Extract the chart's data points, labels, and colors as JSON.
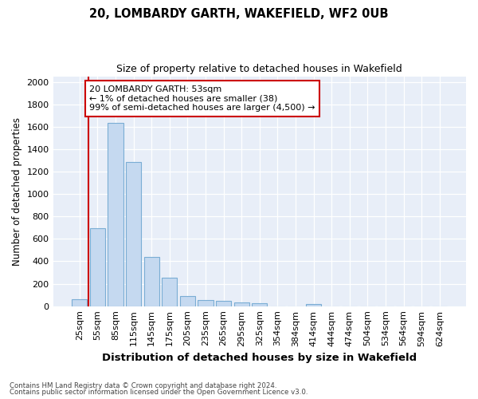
{
  "title1": "20, LOMBARDY GARTH, WAKEFIELD, WF2 0UB",
  "title2": "Size of property relative to detached houses in Wakefield",
  "xlabel": "Distribution of detached houses by size in Wakefield",
  "ylabel": "Number of detached properties",
  "categories": [
    "25sqm",
    "55sqm",
    "85sqm",
    "115sqm",
    "145sqm",
    "175sqm",
    "205sqm",
    "235sqm",
    "265sqm",
    "295sqm",
    "325sqm",
    "354sqm",
    "384sqm",
    "414sqm",
    "444sqm",
    "474sqm",
    "504sqm",
    "534sqm",
    "564sqm",
    "594sqm",
    "624sqm"
  ],
  "values": [
    65,
    695,
    1635,
    1285,
    440,
    255,
    90,
    55,
    50,
    30,
    25,
    0,
    0,
    20,
    0,
    0,
    0,
    0,
    0,
    0,
    0
  ],
  "bar_color": "#c5d9f0",
  "bar_edgecolor": "#7aadd4",
  "vline_color": "#cc0000",
  "annotation_text": "20 LOMBARDY GARTH: 53sqm\n← 1% of detached houses are smaller (38)\n99% of semi-detached houses are larger (4,500) →",
  "annotation_box_edgecolor": "#cc0000",
  "ylim": [
    0,
    2050
  ],
  "yticks": [
    0,
    200,
    400,
    600,
    800,
    1000,
    1200,
    1400,
    1600,
    1800,
    2000
  ],
  "footer1": "Contains HM Land Registry data © Crown copyright and database right 2024.",
  "footer2": "Contains public sector information licensed under the Open Government Licence v3.0.",
  "bg_color": "#ffffff",
  "plot_bg_color": "#e8eef8"
}
